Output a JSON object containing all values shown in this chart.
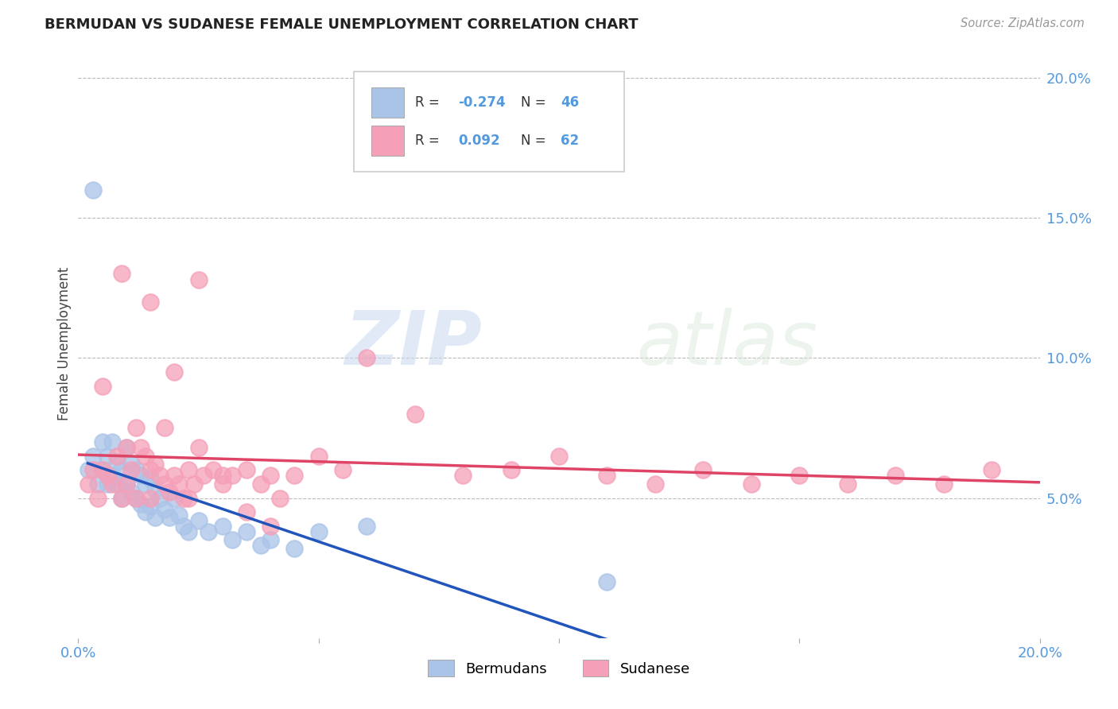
{
  "title": "BERMUDAN VS SUDANESE FEMALE UNEMPLOYMENT CORRELATION CHART",
  "source": "Source: ZipAtlas.com",
  "ylabel": "Female Unemployment",
  "legend_labels": [
    "Bermudans",
    "Sudanese"
  ],
  "legend_R_bermudan": "-0.274",
  "legend_N_bermudan": "46",
  "legend_R_sudanese": "0.092",
  "legend_N_sudanese": "62",
  "bermudan_color": "#aac4e8",
  "sudanese_color": "#f5a0b8",
  "bermudan_line_color": "#2255bb",
  "sudanese_line_color": "#dd4466",
  "ytick_labels": [
    "5.0%",
    "10.0%",
    "15.0%",
    "20.0%"
  ],
  "ytick_values": [
    0.05,
    0.1,
    0.15,
    0.2
  ],
  "xlim": [
    0.0,
    0.2
  ],
  "ylim": [
    0.0,
    0.21
  ],
  "watermark_zip": "ZIP",
  "watermark_atlas": "atlas",
  "bermudan_x": [
    0.002,
    0.003,
    0.004,
    0.005,
    0.005,
    0.006,
    0.006,
    0.007,
    0.007,
    0.008,
    0.008,
    0.009,
    0.009,
    0.01,
    0.01,
    0.011,
    0.011,
    0.012,
    0.012,
    0.013,
    0.013,
    0.014,
    0.014,
    0.015,
    0.015,
    0.016,
    0.016,
    0.017,
    0.018,
    0.019,
    0.02,
    0.021,
    0.022,
    0.023,
    0.025,
    0.027,
    0.03,
    0.032,
    0.035,
    0.038,
    0.04,
    0.045,
    0.05,
    0.06,
    0.003,
    0.11
  ],
  "bermudan_y": [
    0.06,
    0.065,
    0.055,
    0.07,
    0.06,
    0.065,
    0.055,
    0.07,
    0.058,
    0.063,
    0.055,
    0.06,
    0.05,
    0.068,
    0.055,
    0.062,
    0.052,
    0.06,
    0.05,
    0.058,
    0.048,
    0.055,
    0.045,
    0.057,
    0.047,
    0.053,
    0.043,
    0.05,
    0.046,
    0.043,
    0.05,
    0.044,
    0.04,
    0.038,
    0.042,
    0.038,
    0.04,
    0.035,
    0.038,
    0.033,
    0.035,
    0.032,
    0.038,
    0.04,
    0.16,
    0.02
  ],
  "sudanese_x": [
    0.002,
    0.003,
    0.004,
    0.005,
    0.005,
    0.006,
    0.007,
    0.008,
    0.009,
    0.01,
    0.01,
    0.011,
    0.012,
    0.013,
    0.014,
    0.015,
    0.015,
    0.016,
    0.017,
    0.018,
    0.019,
    0.02,
    0.021,
    0.022,
    0.023,
    0.024,
    0.025,
    0.026,
    0.028,
    0.03,
    0.032,
    0.035,
    0.038,
    0.04,
    0.042,
    0.045,
    0.05,
    0.055,
    0.06,
    0.07,
    0.08,
    0.09,
    0.1,
    0.11,
    0.12,
    0.13,
    0.14,
    0.15,
    0.16,
    0.17,
    0.18,
    0.19,
    0.009,
    0.015,
    0.02,
    0.025,
    0.03,
    0.035,
    0.018,
    0.023,
    0.012,
    0.04
  ],
  "sudanese_y": [
    0.055,
    0.06,
    0.05,
    0.09,
    0.06,
    0.058,
    0.055,
    0.065,
    0.05,
    0.068,
    0.055,
    0.06,
    0.05,
    0.068,
    0.065,
    0.06,
    0.05,
    0.062,
    0.058,
    0.055,
    0.052,
    0.058,
    0.055,
    0.05,
    0.06,
    0.055,
    0.068,
    0.058,
    0.06,
    0.055,
    0.058,
    0.06,
    0.055,
    0.058,
    0.05,
    0.058,
    0.065,
    0.06,
    0.1,
    0.08,
    0.058,
    0.06,
    0.065,
    0.058,
    0.055,
    0.06,
    0.055,
    0.058,
    0.055,
    0.058,
    0.055,
    0.06,
    0.13,
    0.12,
    0.095,
    0.128,
    0.058,
    0.045,
    0.075,
    0.05,
    0.075,
    0.04
  ]
}
